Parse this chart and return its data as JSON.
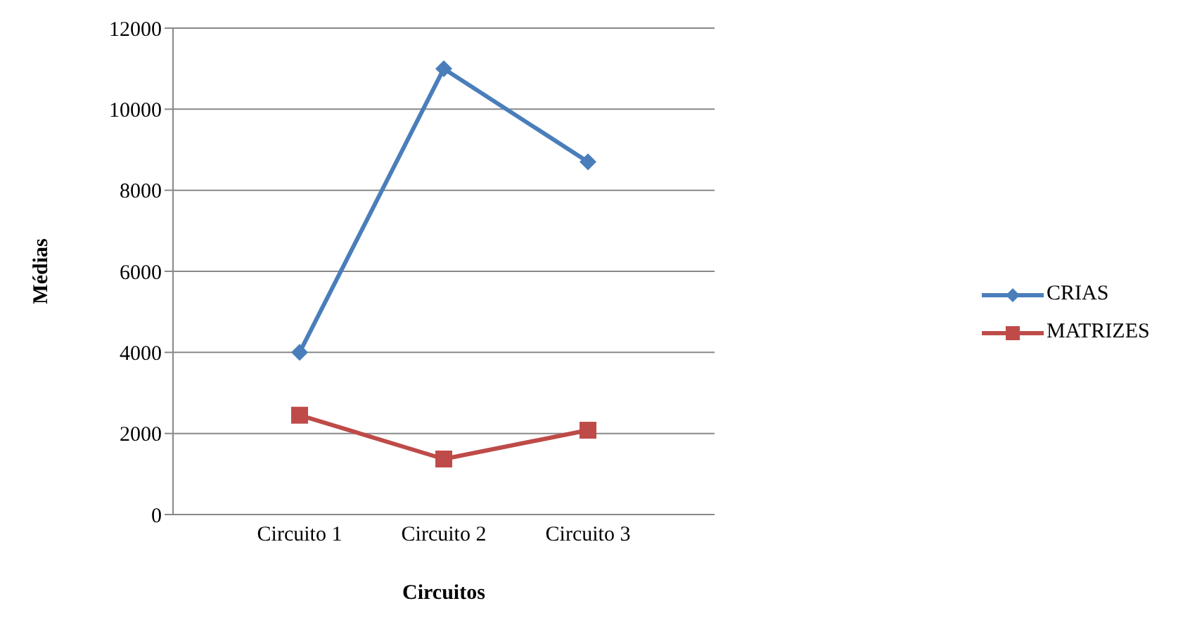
{
  "chart_data": {
    "type": "line",
    "xlabel": "Circuitos",
    "ylabel": "Médias",
    "categories": [
      "Circuito 1",
      "Circuito 2",
      "Circuito 3"
    ],
    "series": [
      {
        "name": "CRIAS",
        "color": "#4a7ebb",
        "marker": "diamond",
        "values": [
          4000,
          11000,
          8700
        ]
      },
      {
        "name": "MATRIZES",
        "color": "#be4b48",
        "marker": "square",
        "values": [
          2450,
          1370,
          2080
        ]
      }
    ],
    "ylim": [
      0,
      12000
    ],
    "yticks": [
      0,
      2000,
      4000,
      6000,
      8000,
      10000,
      12000
    ],
    "grid": "y",
    "legend": "right"
  }
}
